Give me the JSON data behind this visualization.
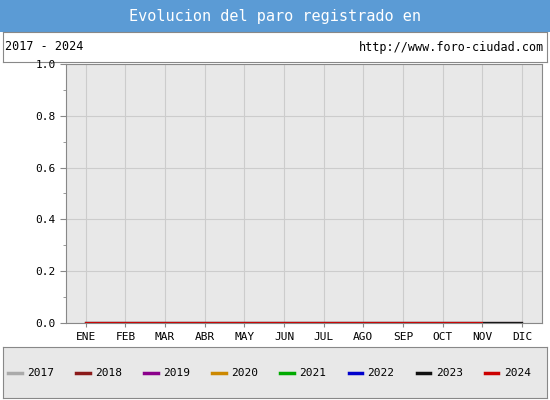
{
  "title": "Evolucion del paro registrado en",
  "title_color": "#ffffff",
  "title_bg_color": "#5b9bd5",
  "subtitle_left": "2017 - 2024",
  "subtitle_right": "http://www.foro-ciudad.com",
  "ylim": [
    0.0,
    1.0
  ],
  "yticks": [
    0.0,
    0.2,
    0.4,
    0.6,
    0.8,
    1.0
  ],
  "months": [
    "ENE",
    "FEB",
    "MAR",
    "ABR",
    "MAY",
    "JUN",
    "JUL",
    "AGO",
    "SEP",
    "OCT",
    "NOV",
    "DIC"
  ],
  "years": [
    2017,
    2018,
    2019,
    2020,
    2021,
    2022,
    2023,
    2024
  ],
  "line_colors": [
    "#aaaaaa",
    "#8b1a1a",
    "#8b008b",
    "#cc8800",
    "#00aa00",
    "#0000cc",
    "#111111",
    "#cc0000"
  ],
  "data": {
    "2017": [
      0,
      0,
      0,
      0,
      0,
      0,
      0,
      0,
      0,
      0,
      0,
      0
    ],
    "2018": [
      0,
      0,
      0,
      0,
      0,
      0,
      0,
      0,
      0,
      0,
      0,
      0
    ],
    "2019": [
      0,
      0,
      0,
      0,
      0,
      0,
      0,
      0,
      0,
      0,
      0,
      0
    ],
    "2020": [
      0,
      0,
      0,
      0,
      0,
      0,
      0,
      0,
      0,
      0,
      0,
      0
    ],
    "2021": [
      0,
      0,
      0,
      0,
      0,
      0,
      0,
      0,
      0,
      0,
      0,
      0
    ],
    "2022": [
      0,
      0,
      0,
      0,
      0,
      0,
      0,
      0,
      0,
      0,
      0,
      0
    ],
    "2023": [
      0,
      0,
      0,
      0,
      0,
      0,
      0,
      0,
      0,
      0,
      0,
      0
    ],
    "2024": [
      0,
      0,
      0,
      0,
      0,
      0,
      0,
      0,
      0,
      0,
      0,
      null
    ]
  },
  "plot_bg_color": "#e8e8e8",
  "grid_color": "#cccccc",
  "outer_bg_color": "#ffffff",
  "legend_bg_color": "#e8e8e8",
  "legend_border_color": "#888888",
  "subtitle_bg_color": "#ffffff",
  "subtitle_border_color": "#888888"
}
